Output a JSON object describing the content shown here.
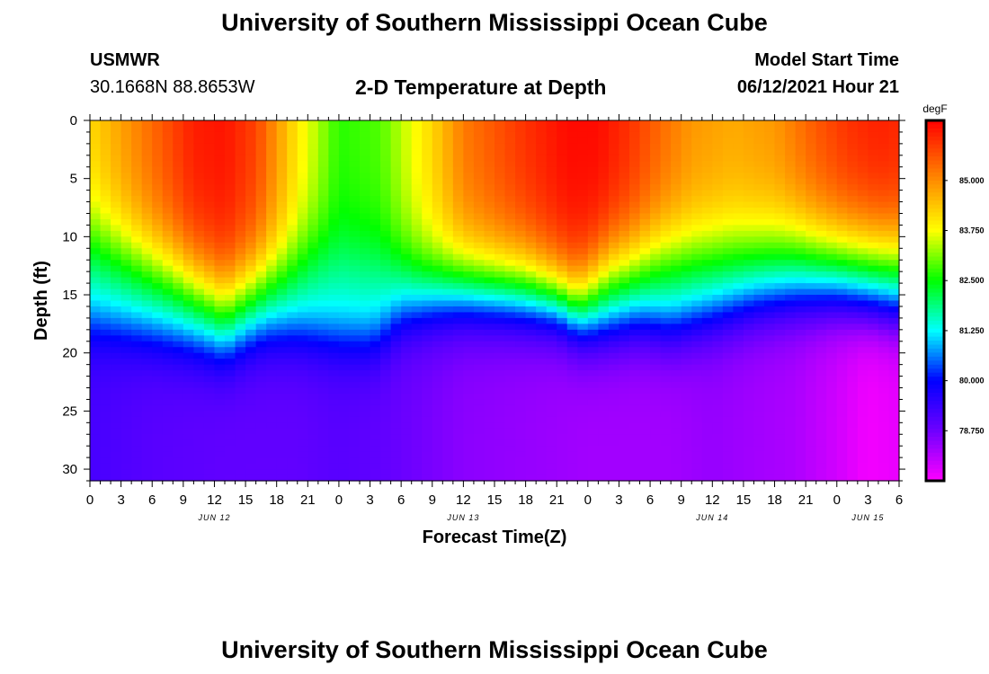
{
  "header": {
    "title": "University of Southern Mississippi Ocean Cube",
    "footer_title": "University of Southern Mississippi Ocean Cube",
    "station": "USMWR",
    "coords": "30.1668N  88.8653W",
    "plot_title": "2-D Temperature at Depth",
    "model_start_label": "Model Start Time",
    "model_start_value": "06/12/2021 Hour 21"
  },
  "chart_data": {
    "type": "heatmap",
    "title": "2-D Temperature at Depth",
    "xlabel": "Forecast Time(Z)",
    "ylabel": "Depth (ft)",
    "x_hours_from_jun12_00z": [
      0,
      78
    ],
    "x_tick_labels": [
      "0",
      "3",
      "6",
      "9",
      "12",
      "15",
      "18",
      "21",
      "0",
      "3",
      "6",
      "9",
      "12",
      "15",
      "18",
      "21",
      "0",
      "3",
      "6",
      "9",
      "12",
      "15",
      "18",
      "21",
      "0",
      "3",
      "6"
    ],
    "date_labels": [
      {
        "label": "JUN 12",
        "hour": 12
      },
      {
        "label": "JUN 13",
        "hour": 36
      },
      {
        "label": "JUN 14",
        "hour": 60
      },
      {
        "label": "JUN 15",
        "hour": 75
      }
    ],
    "y_range_ft": [
      0,
      31
    ],
    "y_tick_labels": [
      0,
      5,
      10,
      15,
      20,
      25,
      30
    ],
    "colorbar": {
      "units": "degF",
      "range": [
        77.5,
        86.5
      ],
      "tick_values": [
        85.0,
        83.75,
        82.5,
        81.25,
        80.0,
        78.75
      ],
      "tick_labels": [
        "85.000",
        "83.750",
        "82.500",
        "81.250",
        "80.000",
        "78.750"
      ]
    },
    "surface_temp_degF": {
      "hours": [
        0,
        6,
        10,
        13,
        16,
        20,
        24,
        28,
        33,
        36,
        42,
        46,
        49,
        52,
        55,
        58,
        62,
        66,
        70,
        73,
        76,
        78
      ],
      "values": [
        84.2,
        85.4,
        86.2,
        86.3,
        85.8,
        84.0,
        82.7,
        82.9,
        84.2,
        85.2,
        86.0,
        86.4,
        86.4,
        86.0,
        85.4,
        84.9,
        84.7,
        84.9,
        85.6,
        86.0,
        86.2,
        86.1
      ]
    },
    "surface_layer_depth_ft": {
      "hours": [
        0,
        8,
        13,
        17,
        22,
        28,
        32,
        36,
        42,
        47,
        50,
        55,
        62,
        68,
        73,
        78
      ],
      "values": [
        10.0,
        13.0,
        15.5,
        13.5,
        11.5,
        12.0,
        13.0,
        13.0,
        13.5,
        15.5,
        13.0,
        11.5,
        11.0,
        10.5,
        11.0,
        11.5
      ]
    },
    "thermocline_depth_ft": {
      "hours": [
        0,
        6,
        10,
        13,
        15,
        17,
        20,
        24,
        27,
        28,
        30,
        33,
        36,
        40,
        45,
        47,
        48,
        50,
        53,
        56,
        60,
        64,
        68,
        72,
        75,
        78
      ],
      "values": [
        17.5,
        18.5,
        19.2,
        20.0,
        19.0,
        18.3,
        18.3,
        18.8,
        19.0,
        18.5,
        17.0,
        16.5,
        16.3,
        16.5,
        17.0,
        18.0,
        18.2,
        18.0,
        17.5,
        18.0,
        17.0,
        16.0,
        15.5,
        15.5,
        16.0,
        16.5
      ]
    },
    "deep_temp_degF": {
      "hours": [
        0,
        6,
        13,
        20,
        24,
        28,
        32,
        36,
        48,
        56,
        60,
        64,
        68,
        72,
        75,
        78
      ],
      "values": [
        79.2,
        79.0,
        78.9,
        78.9,
        79.0,
        78.9,
        78.7,
        78.5,
        78.3,
        78.3,
        78.4,
        78.3,
        78.2,
        77.9,
        77.6,
        77.7
      ]
    }
  }
}
